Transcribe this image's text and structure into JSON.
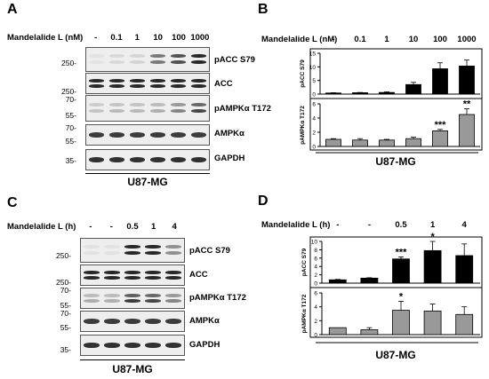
{
  "panels": {
    "A": "A",
    "B": "B",
    "C": "C",
    "D": "D"
  },
  "top": {
    "header": "Mandelalide L (nM)",
    "lanes": [
      "-",
      "0.1",
      "1",
      "10",
      "100",
      "1000"
    ],
    "cell_line": "U87-MG",
    "antibodies": [
      "pACC S79",
      "ACC",
      "pAMPKα T172",
      "AMPKα",
      "GAPDH"
    ],
    "mw": {
      "pacc": "250-",
      "acc": "250-",
      "pampk70": "70-",
      "pampk55": "55-",
      "ampk70": "70-",
      "ampk55": "55-",
      "gapdh": "35-"
    },
    "levels": {
      "pacc": [
        0.05,
        0.1,
        0.12,
        0.55,
        0.75,
        0.95
      ],
      "acc": [
        0.95,
        0.95,
        0.95,
        0.95,
        0.95,
        0.95
      ],
      "pampk": [
        0.2,
        0.25,
        0.25,
        0.3,
        0.5,
        0.8
      ],
      "ampk": [
        0.85,
        0.85,
        0.85,
        0.85,
        0.85,
        0.85
      ],
      "gapdh": [
        0.9,
        0.9,
        0.9,
        0.9,
        0.9,
        0.9
      ]
    }
  },
  "bottom": {
    "header": "Mandelalide L (h)",
    "lanes": [
      "-",
      "-",
      "0.5",
      "1",
      "4"
    ],
    "cell_line": "U87-MG",
    "antibodies": [
      "pACC S79",
      "ACC",
      "pAMPKα T172",
      "AMPKα",
      "GAPDH"
    ],
    "mw": {
      "pacc": "250-",
      "acc": "250-",
      "pampk70": "70-",
      "pampk55": "55-",
      "ampk70": "70-",
      "ampk55": "55-",
      "gapdh": "35-"
    },
    "levels": {
      "pacc": [
        0.02,
        0.02,
        0.95,
        0.95,
        0.45
      ],
      "acc": [
        0.95,
        0.95,
        0.95,
        0.95,
        0.95
      ],
      "pampk": [
        0.3,
        0.3,
        0.85,
        0.8,
        0.5
      ],
      "ampk": [
        0.85,
        0.85,
        0.85,
        0.85,
        0.85
      ],
      "gapdh": [
        0.9,
        0.9,
        0.9,
        0.9,
        0.9
      ]
    }
  },
  "chart_data": [
    {
      "type": "bar",
      "panel": "B",
      "subplot": "top",
      "categories": [
        "-",
        "0.1",
        "1",
        "10",
        "100",
        "1000"
      ],
      "values": [
        0.4,
        0.5,
        0.6,
        3.5,
        9.3,
        10.3
      ],
      "errors": [
        0.1,
        0.1,
        0.2,
        0.8,
        2.2,
        2.2
      ],
      "ylabel": "pACC S79",
      "ylim": [
        0,
        15
      ],
      "yticks": [
        "0",
        "5",
        "10",
        "15"
      ],
      "annotations": [
        "",
        "",
        "",
        "",
        "",
        ""
      ],
      "color": "#000000"
    },
    {
      "type": "bar",
      "panel": "B",
      "subplot": "bottom",
      "categories": [
        "-",
        "0.1",
        "1",
        "10",
        "100",
        "1000"
      ],
      "values": [
        1.0,
        0.9,
        0.9,
        1.1,
        2.2,
        4.5
      ],
      "errors": [
        0.1,
        0.2,
        0.1,
        0.2,
        0.2,
        0.8
      ],
      "ylabel": "pAMPKα T172",
      "ylim": [
        0,
        6
      ],
      "yticks": [
        "0",
        "2",
        "4",
        "6"
      ],
      "annotations": [
        "",
        "",
        "",
        "",
        "***",
        "**"
      ],
      "color": "#999999"
    },
    {
      "type": "bar",
      "panel": "D",
      "subplot": "top",
      "categories": [
        "-",
        "-",
        "0.5",
        "1",
        "4"
      ],
      "values": [
        0.8,
        1.2,
        5.8,
        7.8,
        6.6
      ],
      "errors": [
        0.1,
        0.1,
        0.5,
        2.2,
        2.8
      ],
      "ylabel": "pACC S79",
      "ylim": [
        0,
        10
      ],
      "yticks": [
        "0",
        "2",
        "4",
        "6",
        "8",
        "10"
      ],
      "annotations": [
        "",
        "",
        "***",
        "*",
        ""
      ],
      "color": "#000000"
    },
    {
      "type": "bar",
      "panel": "D",
      "subplot": "bottom",
      "categories": [
        "-",
        "-",
        "0.5",
        "1",
        "4"
      ],
      "values": [
        1.0,
        0.7,
        3.5,
        3.4,
        2.9
      ],
      "errors": [
        0.0,
        0.3,
        1.3,
        1.0,
        1.1
      ],
      "ylabel": "pAMPKα T172",
      "ylim": [
        0,
        6
      ],
      "yticks": [
        "0",
        "2",
        "4",
        "6"
      ],
      "annotations": [
        "",
        "",
        "*",
        "",
        ""
      ],
      "color": "#999999"
    }
  ],
  "chart_cell_lines": {
    "B": "U87-MG",
    "D": "U87-MG"
  },
  "chart_headers": {
    "B": "Mandelalide L (nM)",
    "D": "Mandelalide L (h)"
  }
}
